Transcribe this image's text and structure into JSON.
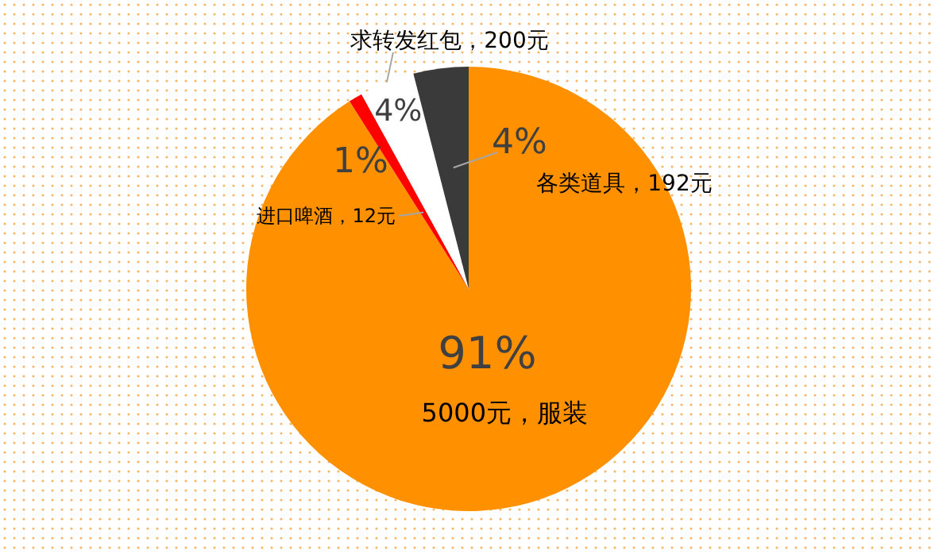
{
  "chart_data": {
    "type": "pie",
    "categories": [
      "5000元，服装",
      "进口啤酒，12元",
      "求转发红包，200元",
      "各类道具，192元"
    ],
    "values": [
      91,
      1,
      4,
      4
    ],
    "colors": [
      "#ff9100",
      "#ff0000",
      "#ffffff",
      "#3a3a3a"
    ],
    "value_labels": [
      "91%",
      "1%",
      "4%",
      "4%"
    ]
  }
}
